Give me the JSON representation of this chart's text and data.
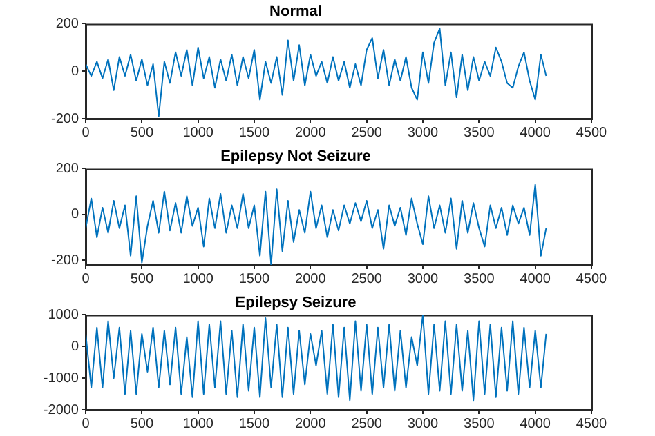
{
  "chart_data": [
    {
      "type": "line",
      "title": "Normal",
      "x": [
        0,
        50,
        100,
        150,
        200,
        250,
        300,
        350,
        400,
        450,
        500,
        550,
        600,
        650,
        700,
        750,
        800,
        850,
        900,
        950,
        1000,
        1050,
        1100,
        1150,
        1200,
        1250,
        1300,
        1350,
        1400,
        1450,
        1500,
        1550,
        1600,
        1650,
        1700,
        1750,
        1800,
        1850,
        1900,
        1950,
        2000,
        2050,
        2100,
        2150,
        2200,
        2250,
        2300,
        2350,
        2400,
        2450,
        2500,
        2550,
        2600,
        2650,
        2700,
        2750,
        2800,
        2850,
        2900,
        2950,
        3000,
        3050,
        3100,
        3150,
        3200,
        3250,
        3300,
        3350,
        3400,
        3450,
        3500,
        3550,
        3600,
        3650,
        3700,
        3750,
        3800,
        3850,
        3900,
        3950,
        4000,
        4050,
        4097
      ],
      "series": [
        {
          "color": "#0072bd",
          "values": [
            30,
            -20,
            40,
            -30,
            50,
            -80,
            60,
            -20,
            70,
            -40,
            50,
            -60,
            30,
            -190,
            40,
            -50,
            80,
            -20,
            90,
            -60,
            100,
            -30,
            60,
            -70,
            50,
            -40,
            70,
            -60,
            60,
            -30,
            90,
            -120,
            40,
            -50,
            60,
            -100,
            130,
            -40,
            110,
            -60,
            70,
            -20,
            40,
            -50,
            60,
            -40,
            40,
            -70,
            30,
            -60,
            90,
            140,
            -30,
            90,
            -60,
            50,
            -40,
            60,
            -70,
            -120,
            80,
            -50,
            120,
            180,
            -60,
            80,
            -110,
            70,
            -80,
            60,
            -40,
            40,
            -20,
            100,
            40,
            -50,
            -70,
            20,
            80,
            -40,
            -120,
            70,
            -20
          ]
        }
      ],
      "xlim": [
        0,
        4500
      ],
      "xticks": [
        0,
        500,
        1000,
        1500,
        2000,
        2500,
        3000,
        3500,
        4000,
        4500
      ],
      "ylim": [
        -200,
        200
      ],
      "yticks": [
        -200,
        0,
        200
      ],
      "grid": false
    },
    {
      "type": "line",
      "title": "Epilepsy Not Seizure",
      "x": [
        0,
        50,
        100,
        150,
        200,
        250,
        300,
        350,
        400,
        450,
        500,
        550,
        600,
        650,
        700,
        750,
        800,
        850,
        900,
        950,
        1000,
        1050,
        1100,
        1150,
        1200,
        1250,
        1300,
        1350,
        1400,
        1450,
        1500,
        1550,
        1600,
        1650,
        1700,
        1750,
        1800,
        1850,
        1900,
        1950,
        2000,
        2050,
        2100,
        2150,
        2200,
        2250,
        2300,
        2350,
        2400,
        2450,
        2500,
        2550,
        2600,
        2650,
        2700,
        2750,
        2800,
        2850,
        2900,
        2950,
        3000,
        3050,
        3100,
        3150,
        3200,
        3250,
        3300,
        3350,
        3400,
        3450,
        3500,
        3550,
        3600,
        3650,
        3700,
        3750,
        3800,
        3850,
        3900,
        3950,
        4000,
        4050,
        4097
      ],
      "series": [
        {
          "color": "#0072bd",
          "values": [
            -60,
            70,
            -100,
            30,
            -80,
            60,
            -60,
            40,
            -180,
            80,
            -210,
            -50,
            60,
            -80,
            100,
            -70,
            50,
            -80,
            80,
            -50,
            30,
            -140,
            70,
            -60,
            90,
            -80,
            40,
            -60,
            90,
            -60,
            40,
            -180,
            100,
            -220,
            110,
            -160,
            60,
            -120,
            20,
            -80,
            100,
            -60,
            40,
            -100,
            20,
            -70,
            40,
            -40,
            50,
            -30,
            60,
            -60,
            20,
            -150,
            40,
            -50,
            30,
            -90,
            70,
            -40,
            -130,
            80,
            -60,
            40,
            -80,
            70,
            -150,
            60,
            -80,
            50,
            -60,
            -140,
            40,
            -60,
            30,
            -90,
            40,
            -40,
            30,
            -90,
            130,
            -180,
            -60
          ]
        }
      ],
      "xlim": [
        0,
        4500
      ],
      "xticks": [
        0,
        500,
        1000,
        1500,
        2000,
        2500,
        3000,
        3500,
        4000,
        4500
      ],
      "ylim": [
        -220,
        200
      ],
      "yticks": [
        -200,
        0,
        200
      ],
      "grid": false
    },
    {
      "type": "line",
      "title": "Epilepsy Seizure",
      "x": [
        0,
        50,
        100,
        150,
        200,
        250,
        300,
        350,
        400,
        450,
        500,
        550,
        600,
        650,
        700,
        750,
        800,
        850,
        900,
        950,
        1000,
        1050,
        1100,
        1150,
        1200,
        1250,
        1300,
        1350,
        1400,
        1450,
        1500,
        1550,
        1600,
        1650,
        1700,
        1750,
        1800,
        1850,
        1900,
        1950,
        2000,
        2050,
        2100,
        2150,
        2200,
        2250,
        2300,
        2350,
        2400,
        2450,
        2500,
        2550,
        2600,
        2650,
        2700,
        2750,
        2800,
        2850,
        2900,
        2950,
        3000,
        3050,
        3100,
        3150,
        3200,
        3250,
        3300,
        3350,
        3400,
        3450,
        3500,
        3550,
        3600,
        3650,
        3700,
        3750,
        3800,
        3850,
        3900,
        3950,
        4000,
        4050,
        4097
      ],
      "series": [
        {
          "color": "#0072bd",
          "values": [
            400,
            -1300,
            600,
            -1300,
            800,
            -1000,
            600,
            -1500,
            500,
            -1500,
            400,
            -800,
            600,
            -1300,
            500,
            -1200,
            600,
            -1500,
            300,
            -1600,
            800,
            -1500,
            700,
            -1300,
            800,
            -1500,
            500,
            -1600,
            700,
            -1400,
            600,
            -1600,
            900,
            -1300,
            700,
            -1600,
            600,
            -1500,
            500,
            -1200,
            400,
            -600,
            500,
            -1500,
            700,
            -1600,
            600,
            -1700,
            800,
            -1400,
            700,
            -1500,
            600,
            -1300,
            700,
            -1400,
            500,
            -1300,
            300,
            -600,
            1000,
            -1500,
            700,
            -1400,
            800,
            -1500,
            700,
            -1400,
            500,
            -1700,
            800,
            -1500,
            700,
            -1600,
            600,
            -1400,
            800,
            -1500,
            600,
            -1300,
            500,
            -1300,
            400
          ]
        }
      ],
      "xlim": [
        0,
        4500
      ],
      "xticks": [
        0,
        500,
        1000,
        1500,
        2000,
        2500,
        3000,
        3500,
        4000,
        4500
      ],
      "ylim": [
        -2000,
        1000
      ],
      "yticks": [
        -2000,
        -1000,
        0,
        1000
      ],
      "grid": false
    }
  ]
}
